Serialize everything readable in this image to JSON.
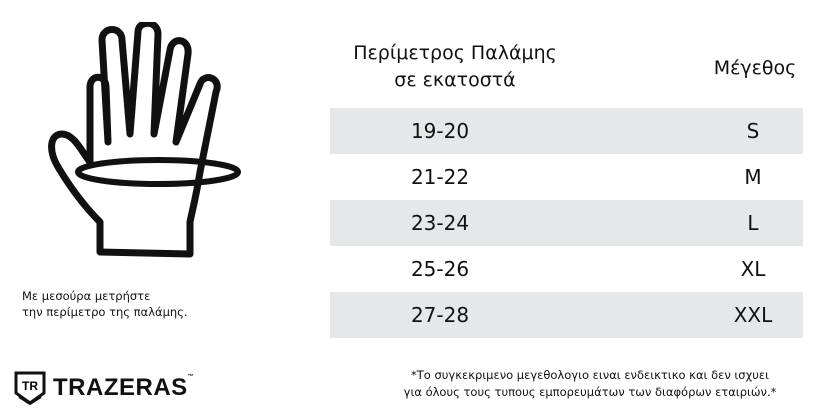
{
  "caption": [
    "Με μεσούρα μετρήστε",
    "την περίμετρο της παλάμης."
  ],
  "logo": {
    "text": "TRAZERAS",
    "tm": "™",
    "emblem": "TR"
  },
  "table": {
    "header_circumference": [
      "Περίμετρος Παλάμης",
      "σε εκατοστά"
    ],
    "header_size": "Μέγεθος",
    "rows": [
      {
        "range": "19-20",
        "size": "S"
      },
      {
        "range": "21-22",
        "size": "M"
      },
      {
        "range": "23-24",
        "size": "L"
      },
      {
        "range": "25-26",
        "size": "XL"
      },
      {
        "range": "27-28",
        "size": "XXL"
      }
    ],
    "stripe_color": "#e6e7e8"
  },
  "note": [
    "*Το συγκεκριμενο μεγεθολογιο ειναι ενδεικτικο και δεν ισχυει",
    "για όλους τους τυπους εμπορευμάτων των διαφόρων εταιριών.*"
  ]
}
